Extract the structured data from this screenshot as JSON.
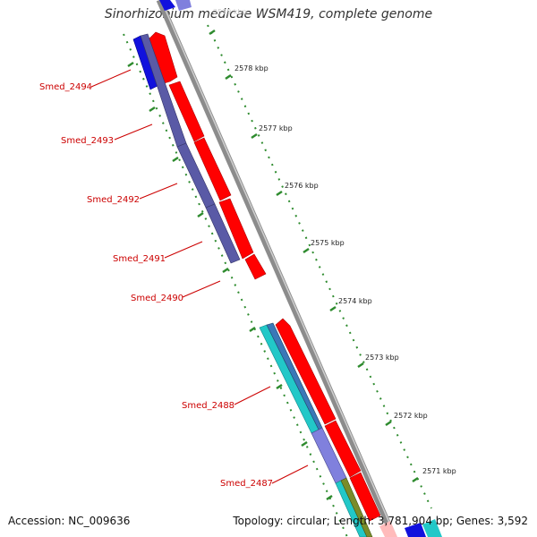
{
  "title": "Sinorhizobium medicae WSM419, complete genome",
  "footer": {
    "accession": "Accession: NC_009636",
    "summary": "Topology: circular; Length: 3,781,904 bp; Genes: 3,592"
  },
  "colors": {
    "backbone": "#8c8c8c",
    "tick": "#2e8b2e",
    "label": "#cc0000",
    "cds": "#ff0000",
    "gene_purple": "#5a5aa6",
    "gene_blue": "#1111dd",
    "gene_cyan": "#22c8c8",
    "gene_lavender": "#8080dd",
    "gene_olive": "#7a8c2a"
  },
  "gene_labels": [
    {
      "id": "Smed_2494",
      "text": "Smed_2494"
    },
    {
      "id": "Smed_2493",
      "text": "Smed_2493"
    },
    {
      "id": "Smed_2492",
      "text": "Smed_2492"
    },
    {
      "id": "Smed_2491",
      "text": "Smed_2491"
    },
    {
      "id": "Smed_2490",
      "text": "Smed_2490"
    },
    {
      "id": "Smed_2488",
      "text": "Smed_2488"
    },
    {
      "id": "Smed_2487",
      "text": "Smed_2487"
    }
  ],
  "scale_labels": [
    "2579 kbp",
    "2578 kbp",
    "2577 kbp",
    "2576 kbp",
    "2575 kbp",
    "2574 kbp",
    "2573 kbp",
    "2572 kbp",
    "2571 kbp"
  ]
}
